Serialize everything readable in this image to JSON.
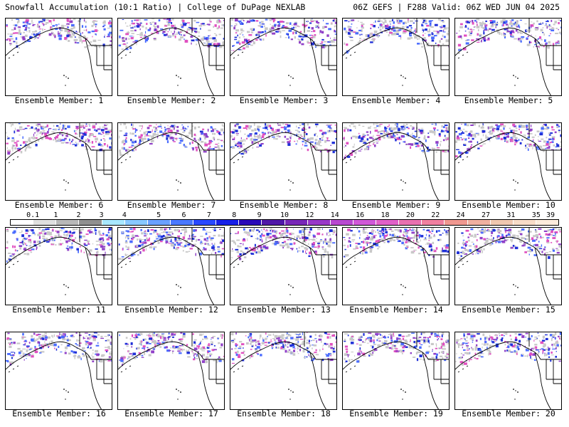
{
  "header": {
    "left": "Snowfall Accumulation (10:1 Ratio) | College of DuPage NEXLAB",
    "right": "06Z GEFS | F288 Valid: 06Z WED JUN 04 2025"
  },
  "members": [
    {
      "label": "Ensemble Member: 1"
    },
    {
      "label": "Ensemble Member: 2"
    },
    {
      "label": "Ensemble Member: 3"
    },
    {
      "label": "Ensemble Member: 4"
    },
    {
      "label": "Ensemble Member: 5"
    },
    {
      "label": "Ensemble Member: 6"
    },
    {
      "label": "Ensemble Member: 7"
    },
    {
      "label": "Ensemble Member: 8"
    },
    {
      "label": "Ensemble Member: 9"
    },
    {
      "label": "Ensemble Member: 10"
    },
    {
      "label": "Ensemble Member: 11"
    },
    {
      "label": "Ensemble Member: 12"
    },
    {
      "label": "Ensemble Member: 13"
    },
    {
      "label": "Ensemble Member: 14"
    },
    {
      "label": "Ensemble Member: 15"
    },
    {
      "label": "Ensemble Member: 16"
    },
    {
      "label": "Ensemble Member: 17"
    },
    {
      "label": "Ensemble Member: 18"
    },
    {
      "label": "Ensemble Member: 19"
    },
    {
      "label": "Ensemble Member: 20"
    }
  ],
  "colorbar": {
    "labels": [
      "0.1",
      "1",
      "2",
      "3",
      "4",
      "5",
      "6",
      "7",
      "8",
      "9",
      "10",
      "12",
      "14",
      "16",
      "18",
      "20",
      "22",
      "24",
      "27",
      "31",
      "35",
      "39"
    ],
    "colors": [
      "#ffffff",
      "#e0e0e0",
      "#b8b8b8",
      "#909090",
      "#a8e8ff",
      "#88c8ff",
      "#6aa0ff",
      "#4a78ff",
      "#2848ff",
      "#1820e8",
      "#2808b8",
      "#5018a8",
      "#7828b8",
      "#9838c8",
      "#b848d0",
      "#d058d8",
      "#e060c8",
      "#e870b0",
      "#f080a0",
      "#f09890",
      "#f0b0a0",
      "#f0c8b0",
      "#f8dcc8",
      "#fcecdc"
    ]
  },
  "colors": {
    "snow_light": "#c8c8c8",
    "snow_blue": "#4a6cff",
    "snow_dark_blue": "#2030d8",
    "snow_purple": "#9040c8",
    "snow_pink": "#e050c0",
    "coastline": "#000000"
  }
}
